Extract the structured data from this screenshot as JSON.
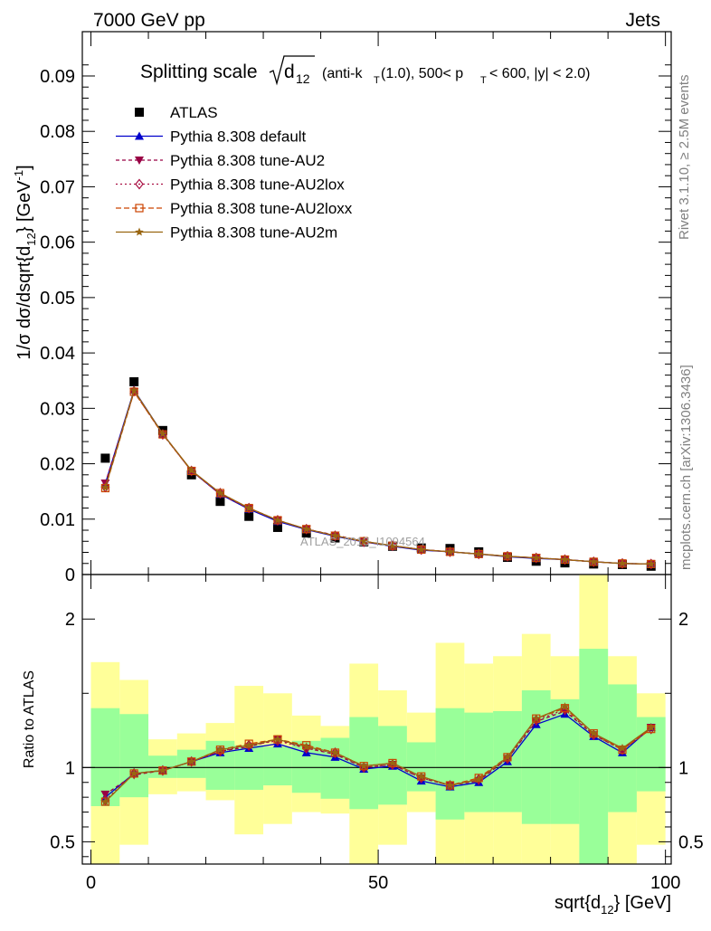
{
  "header": {
    "left": "7000 GeV pp",
    "right": "Jets"
  },
  "side_labels": {
    "rivet": "Rivet 3.1.10, ≥ 2.5M events",
    "mcplots": "mcplots.cern.ch [arXiv:1306.3436]"
  },
  "watermark": "ATLAS_2013_I1094564",
  "chart_data": [
    {
      "type": "line",
      "title": {
        "main": "Splitting scale",
        "sqrt_arg": "d",
        "sqrt_sub": "12",
        "rest_1": "(anti-k",
        "rest_1_sub": "T",
        "rest_2": "(1.0), 500< p",
        "rest_2_sub": "T",
        "rest_3": "< 600, |y| < 2.0)"
      },
      "ylabel": "1/σ dσ/dsqrt{d12} [GeV-1]",
      "ylabel_parts": {
        "a": "1/σ dσ/dsqrt{d",
        "b": "12",
        "c": "} [GeV",
        "d": "-1",
        "e": "]"
      },
      "xlim": [
        -1.5,
        101
      ],
      "ylim": [
        0,
        0.098
      ],
      "yticks": [
        0,
        0.01,
        0.02,
        0.03,
        0.04,
        0.05,
        0.06,
        0.07,
        0.08,
        0.09
      ],
      "ytick_labels": [
        "0",
        "0.01",
        "0.02",
        "0.03",
        "0.04",
        "0.05",
        "0.06",
        "0.07",
        "0.08",
        "0.09"
      ],
      "x": [
        2.5,
        7.5,
        12.5,
        17.5,
        22.5,
        27.5,
        32.5,
        37.5,
        42.5,
        47.5,
        52.5,
        57.5,
        62.5,
        67.5,
        72.5,
        77.5,
        82.5,
        87.5,
        92.5,
        97.5
      ],
      "legend_position": "top-left",
      "series": [
        {
          "name": "ATLAS",
          "marker": "square",
          "color": "#000000",
          "dash": "",
          "values": [
            0.021,
            0.0348,
            0.026,
            0.018,
            0.0132,
            0.0105,
            0.0085,
            0.0075,
            0.0066,
            0.0059,
            0.0051,
            0.0048,
            0.0047,
            0.0041,
            0.0031,
            0.0024,
            0.0021,
            0.0019,
            0.0018,
            0.0015
          ]
        },
        {
          "name": "Pythia 8.308 default",
          "marker": "triangle-up",
          "color": "#0000cc",
          "dash": "",
          "values": [
            0.0164,
            0.0333,
            0.0254,
            0.0187,
            0.0145,
            0.0118,
            0.0096,
            0.0081,
            0.0069,
            0.0059,
            0.0051,
            0.0044,
            0.0041,
            0.0037,
            0.0032,
            0.0029,
            0.0027,
            0.0023,
            0.002,
            0.0019
          ]
        },
        {
          "name": "Pythia 8.308 tune-AU2",
          "marker": "triangle-down",
          "color": "#990044",
          "dash": "4,3",
          "values": [
            0.0165,
            0.033,
            0.0254,
            0.0187,
            0.0145,
            0.0119,
            0.0098,
            0.0082,
            0.0071,
            0.006,
            0.0052,
            0.0045,
            0.0041,
            0.0037,
            0.0033,
            0.003,
            0.0027,
            0.0023,
            0.002,
            0.0019
          ]
        },
        {
          "name": "Pythia 8.308 tune-AU2lox",
          "marker": "diamond-open",
          "color": "#aa1144",
          "dash": "2,3",
          "values": [
            0.0158,
            0.0331,
            0.0253,
            0.0187,
            0.0147,
            0.012,
            0.0098,
            0.0082,
            0.007,
            0.0059,
            0.0052,
            0.0045,
            0.0041,
            0.0037,
            0.0033,
            0.003,
            0.0027,
            0.0023,
            0.002,
            0.0019
          ]
        },
        {
          "name": "Pythia 8.308 tune-AU2loxx",
          "marker": "square-open",
          "color": "#cc4400",
          "dash": "6,3",
          "values": [
            0.0156,
            0.033,
            0.0253,
            0.0187,
            0.0147,
            0.012,
            0.0098,
            0.0082,
            0.007,
            0.006,
            0.0052,
            0.0045,
            0.0041,
            0.0037,
            0.0033,
            0.003,
            0.0027,
            0.0023,
            0.002,
            0.0019
          ]
        },
        {
          "name": "Pythia 8.308 tune-AU2m",
          "marker": "star",
          "color": "#996611",
          "dash": "",
          "values": [
            0.0157,
            0.0332,
            0.0254,
            0.0188,
            0.0147,
            0.012,
            0.0098,
            0.0082,
            0.007,
            0.006,
            0.0052,
            0.0045,
            0.0041,
            0.0037,
            0.0033,
            0.003,
            0.0027,
            0.0023,
            0.002,
            0.0019
          ]
        }
      ]
    },
    {
      "type": "line",
      "ylabel": "Ratio to ATLAS",
      "xlabel": "sqrt{d12} [GeV]",
      "xlabel_parts": {
        "a": "sqrt{d",
        "b": "12",
        "c": "} [GeV]"
      },
      "xlim": [
        -1.5,
        101
      ],
      "ylim": [
        0.35,
        2.3
      ],
      "yticks": [
        0.5,
        1,
        2
      ],
      "ytick_labels": [
        "0.5",
        "1",
        "2"
      ],
      "xticks": [
        0,
        50,
        100
      ],
      "xtick_labels": [
        "0",
        "50",
        "100"
      ],
      "reference_line": 1,
      "x": [
        2.5,
        7.5,
        12.5,
        17.5,
        22.5,
        27.5,
        32.5,
        37.5,
        42.5,
        47.5,
        52.5,
        57.5,
        62.5,
        67.5,
        72.5,
        77.5,
        82.5,
        87.5,
        92.5,
        97.5
      ],
      "bin_edges": [
        0,
        5,
        10,
        15,
        20,
        25,
        30,
        35,
        40,
        45,
        50,
        55,
        60,
        65,
        70,
        75,
        80,
        85,
        90,
        95,
        100
      ],
      "band_colors": {
        "inner": "#99ff99",
        "outer": "#ffff99"
      },
      "band_inner": [
        [
          0.74,
          1.4
        ],
        [
          0.8,
          1.36
        ],
        [
          0.93,
          1.08
        ],
        [
          0.93,
          1.12
        ],
        [
          0.85,
          1.18
        ],
        [
          0.85,
          1.15
        ],
        [
          0.88,
          1.14
        ],
        [
          0.83,
          1.18
        ],
        [
          0.79,
          1.2
        ],
        [
          0.72,
          1.34
        ],
        [
          0.75,
          1.28
        ],
        [
          0.84,
          1.17
        ],
        [
          0.65,
          1.4
        ],
        [
          0.7,
          1.37
        ],
        [
          0.7,
          1.38
        ],
        [
          0.62,
          1.52
        ],
        [
          0.62,
          1.46
        ],
        [
          0.35,
          1.8
        ],
        [
          0.7,
          1.56
        ],
        [
          0.84,
          1.34
        ]
      ],
      "band_outer": [
        [
          0.35,
          1.71
        ],
        [
          0.48,
          1.59
        ],
        [
          0.82,
          1.19
        ],
        [
          0.84,
          1.23
        ],
        [
          0.78,
          1.3
        ],
        [
          0.55,
          1.55
        ],
        [
          0.62,
          1.5
        ],
        [
          0.7,
          1.35
        ],
        [
          0.69,
          1.28
        ],
        [
          0.35,
          1.7
        ],
        [
          0.48,
          1.52
        ],
        [
          0.7,
          1.37
        ],
        [
          0.35,
          1.84
        ],
        [
          0.35,
          1.7
        ],
        [
          0.35,
          1.75
        ],
        [
          0.35,
          1.9
        ],
        [
          0.35,
          1.75
        ],
        [
          0.35,
          2.3
        ],
        [
          0.35,
          1.75
        ],
        [
          0.48,
          1.5
        ]
      ],
      "series": [
        {
          "name": "Pythia 8.308 default",
          "marker": "triangle-up",
          "color": "#0000cc",
          "dash": "",
          "values": [
            0.8,
            0.96,
            0.98,
            1.04,
            1.1,
            1.13,
            1.16,
            1.1,
            1.07,
            0.99,
            1.01,
            0.91,
            0.87,
            0.9,
            1.04,
            1.29,
            1.36,
            1.21,
            1.1,
            1.27
          ]
        },
        {
          "name": "Pythia 8.308 tune-AU2",
          "marker": "triangle-down",
          "color": "#990044",
          "dash": "4,3",
          "values": [
            0.82,
            0.95,
            0.98,
            1.04,
            1.11,
            1.14,
            1.19,
            1.13,
            1.09,
            1.0,
            1.02,
            0.93,
            0.88,
            0.91,
            1.06,
            1.31,
            1.38,
            1.22,
            1.12,
            1.27
          ]
        },
        {
          "name": "Pythia 8.308 tune-AU2lox",
          "marker": "diamond-open",
          "color": "#aa1144",
          "dash": "2,3",
          "values": [
            0.78,
            0.96,
            0.98,
            1.04,
            1.11,
            1.15,
            1.18,
            1.13,
            1.1,
            1.0,
            1.02,
            0.93,
            0.88,
            0.92,
            1.06,
            1.32,
            1.39,
            1.22,
            1.12,
            1.26
          ]
        },
        {
          "name": "Pythia 8.308 tune-AU2loxx",
          "marker": "square-open",
          "color": "#cc4400",
          "dash": "6,3",
          "values": [
            0.77,
            0.96,
            0.98,
            1.04,
            1.12,
            1.16,
            1.19,
            1.15,
            1.1,
            1.01,
            1.03,
            0.94,
            0.88,
            0.93,
            1.07,
            1.33,
            1.4,
            1.23,
            1.12,
            1.26
          ]
        },
        {
          "name": "Pythia 8.308 tune-AU2m",
          "marker": "star",
          "color": "#996611",
          "dash": "",
          "values": [
            0.77,
            0.96,
            0.98,
            1.04,
            1.12,
            1.15,
            1.19,
            1.14,
            1.1,
            1.01,
            1.03,
            0.94,
            0.88,
            0.92,
            1.07,
            1.33,
            1.41,
            1.23,
            1.13,
            1.27
          ]
        }
      ]
    }
  ]
}
